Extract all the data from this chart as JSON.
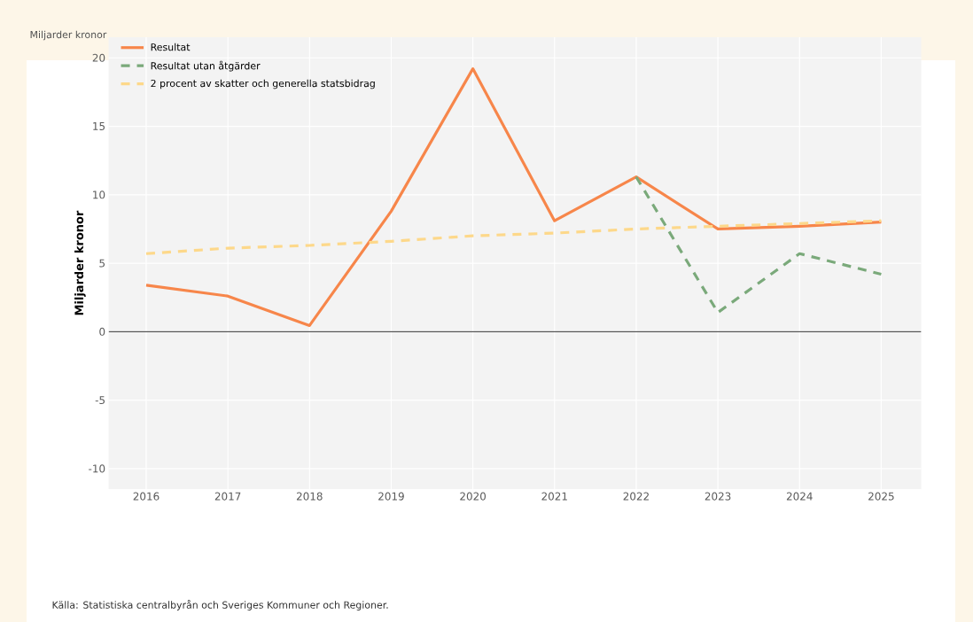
{
  "chart_data": {
    "type": "line",
    "title": "Miljarder kronor",
    "ylabel": "Miljarder kronor",
    "categories": [
      "2016",
      "2017",
      "2018",
      "2019",
      "2020",
      "2021",
      "2022",
      "2023",
      "2024",
      "2025"
    ],
    "series": [
      {
        "name": "Resultat",
        "color": "#f7864a",
        "line_style": "solid",
        "values": [
          3.4,
          2.6,
          0.45,
          8.8,
          19.2,
          8.1,
          11.3,
          7.5,
          7.7,
          8.0
        ]
      },
      {
        "name": "Resultat utan åtgärder",
        "color": "#7aa97a",
        "line_style": "dashed",
        "values": [
          null,
          null,
          null,
          null,
          null,
          null,
          11.3,
          1.4,
          5.7,
          4.2
        ]
      },
      {
        "name": "2 procent av skatter och generella statsbidrag",
        "color": "#fdd88a",
        "line_style": "dashed",
        "values": [
          5.7,
          6.1,
          6.3,
          6.6,
          7.0,
          7.2,
          7.5,
          7.7,
          7.9,
          8.1
        ]
      }
    ],
    "ylim": [
      -11.5,
      21.5
    ],
    "yticks": [
      -10,
      -5,
      0,
      5,
      10,
      15,
      20
    ],
    "ref_lines": [
      {
        "axis": "y",
        "value": 0,
        "color": "#333333"
      }
    ],
    "grid": true,
    "legend": "top left",
    "marker": "none",
    "annotations": [
      "Källa: Statistiska centralbyrån och Sveriges Kommuner och Regioner."
    ]
  }
}
